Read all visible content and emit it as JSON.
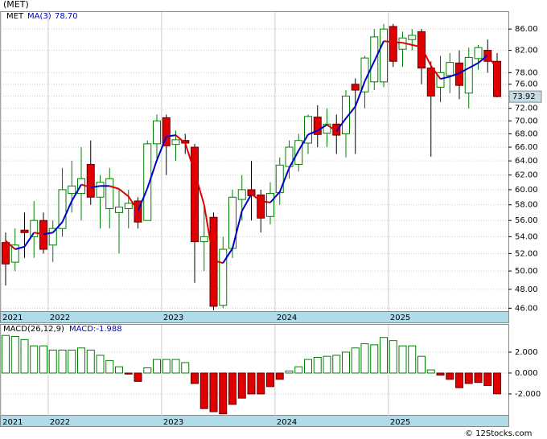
{
  "footer": "© 12Stocks.com",
  "chart_data": [
    {
      "type": "candlestick",
      "title": "(MET)",
      "name": "MET",
      "categories": [
        "2021",
        null,
        null,
        null,
        null,
        "2022",
        null,
        null,
        null,
        null,
        null,
        null,
        null,
        null,
        null,
        null,
        null,
        "2023",
        null,
        null,
        null,
        null,
        null,
        null,
        null,
        null,
        null,
        null,
        null,
        "2024",
        null,
        null,
        null,
        null,
        null,
        null,
        null,
        null,
        null,
        null,
        null,
        "2025",
        null,
        null,
        null,
        null,
        null,
        null,
        null,
        null,
        null,
        null,
        null
      ],
      "open": [
        53.3,
        51,
        54.8,
        54,
        56,
        53,
        55,
        59.5,
        59.5,
        63.5,
        59,
        57.5,
        57,
        57.5,
        58.5,
        56,
        66.5,
        70.5,
        66.4,
        67,
        66,
        53.4,
        56.4,
        46.3,
        52.6,
        58.7,
        60,
        59.3,
        56.5,
        59.6,
        63.2,
        63.5,
        66.6,
        70.6,
        68.1,
        69.5,
        68,
        76,
        74.7,
        76.4,
        76.4,
        86.5,
        82.2,
        84,
        85.5,
        78.8,
        75.5,
        77.5,
        79.7,
        74.5,
        80.5,
        82,
        80
      ],
      "high": [
        54.5,
        55,
        57,
        58.5,
        57,
        56,
        63,
        64,
        66,
        67,
        62,
        63,
        60,
        60,
        59,
        67,
        71,
        71,
        68.5,
        68,
        66.5,
        58,
        57,
        54,
        60,
        62,
        64,
        60,
        61,
        64.5,
        67,
        68,
        71,
        72.5,
        72,
        71,
        75,
        77,
        81,
        86,
        87,
        87,
        85.5,
        86,
        86,
        80,
        81,
        81.5,
        82,
        82.5,
        83,
        84,
        81.5
      ],
      "low": [
        48.4,
        50,
        51.5,
        51.5,
        52,
        51,
        54,
        57,
        56,
        58,
        55,
        55,
        52,
        55,
        55,
        56,
        64,
        62,
        64,
        65,
        48.7,
        50,
        45.8,
        46,
        51.5,
        56,
        56,
        54.5,
        55.5,
        58,
        61.5,
        62.5,
        65,
        66,
        66,
        65,
        64.5,
        65,
        72,
        75,
        75.5,
        79,
        79,
        82,
        76,
        64.6,
        73,
        74.5,
        73.5,
        72,
        78.5,
        78,
        73.8
      ],
      "close": [
        50.8,
        53,
        54.5,
        56,
        52.5,
        55,
        60,
        60.5,
        61.5,
        59,
        61,
        61.5,
        57.7,
        58.2,
        55.8,
        66.5,
        70,
        66.2,
        67.1,
        66.6,
        53.4,
        54,
        46.2,
        52.5,
        59,
        60,
        59.2,
        56.3,
        59.5,
        63.4,
        66,
        67,
        70.7,
        67.9,
        69.5,
        67.8,
        74,
        75,
        80.6,
        84.5,
        86,
        80,
        84.3,
        84.8,
        78.8,
        74,
        78,
        79.8,
        75.8,
        80.7,
        82.5,
        80,
        73.92
      ],
      "up_color": "#008000",
      "down_color": "#e00000",
      "ma": {
        "name": "MA(3)",
        "color": "#0000cc",
        "down_color": "#e00000",
        "value_label": "78.70",
        "values": [
          53.5,
          52.5,
          52.8,
          54.5,
          54.3,
          54.5,
          55.8,
          58.5,
          60.7,
          60.3,
          60.5,
          60.5,
          60.1,
          59.1,
          57.2,
          60.2,
          64.1,
          67.6,
          67.8,
          66.6,
          62.4,
          58.0,
          51.2,
          50.9,
          52.6,
          57.2,
          59.4,
          58.5,
          58.3,
          59.7,
          63.0,
          65.5,
          67.9,
          68.5,
          69.4,
          68.4,
          70.4,
          72.3,
          76.5,
          80.0,
          83.7,
          83.5,
          83.4,
          83.0,
          82.6,
          79.2,
          76.9,
          77.3,
          77.9,
          78.8,
          79.7,
          81.1,
          78.7
        ]
      },
      "log_scale": true,
      "grid": true,
      "ylim": [
        45.7,
        89.5
      ],
      "yticks": [
        {
          "value": 46,
          "label": "46.00"
        },
        {
          "value": 48,
          "label": "48.00"
        },
        {
          "value": 50,
          "label": "50.00"
        },
        {
          "value": 52,
          "label": "52.00"
        },
        {
          "value": 54,
          "label": "54.00"
        },
        {
          "value": 56,
          "label": "56.00"
        },
        {
          "value": 58,
          "label": "58.00"
        },
        {
          "value": 60,
          "label": "60.00"
        },
        {
          "value": 62,
          "label": "62.00"
        },
        {
          "value": 64,
          "label": "64.00"
        },
        {
          "value": 66,
          "label": "66.00"
        },
        {
          "value": 68,
          "label": "68.00"
        },
        {
          "value": 70,
          "label": "70.00"
        },
        {
          "value": 72,
          "label": "72.00"
        },
        {
          "value": 74,
          "label": "74.00"
        },
        {
          "value": 76,
          "label": "76.00"
        },
        {
          "value": 78,
          "label": "78.00"
        },
        {
          "value": 82,
          "label": "82.00"
        },
        {
          "value": 86,
          "label": "86.00"
        }
      ]
    },
    {
      "type": "bar",
      "title": "MACD(26,12,9)",
      "value_label": "MACD:-1.988",
      "categories": [
        "2021",
        null,
        null,
        null,
        null,
        "2022",
        null,
        null,
        null,
        null,
        null,
        null,
        null,
        null,
        null,
        null,
        null,
        "2023",
        null,
        null,
        null,
        null,
        null,
        null,
        null,
        null,
        null,
        null,
        null,
        "2024",
        null,
        null,
        null,
        null,
        null,
        null,
        null,
        null,
        null,
        null,
        null,
        "2025",
        null,
        null,
        null,
        null,
        null,
        null,
        null,
        null,
        null,
        null,
        null
      ],
      "values": [
        3.6,
        3.5,
        3.2,
        2.6,
        2.6,
        2.2,
        2.2,
        2.2,
        2.4,
        2.2,
        1.7,
        1.2,
        0.6,
        -0.1,
        -0.8,
        0.5,
        1.3,
        1.3,
        1.3,
        1.0,
        -1.0,
        -3.4,
        -3.7,
        -3.9,
        -3.0,
        -2.4,
        -2.0,
        -2.0,
        -1.3,
        -0.6,
        0.2,
        0.6,
        1.3,
        1.5,
        1.6,
        1.7,
        2.0,
        2.4,
        2.8,
        2.7,
        3.4,
        3.1,
        2.6,
        2.6,
        1.6,
        0.3,
        -0.2,
        -0.6,
        -1.4,
        -1.0,
        -0.9,
        -1.2,
        -1.988
      ],
      "up_color": "#008000",
      "down_color": "#e00000",
      "grid": true,
      "ylim": [
        -4.08,
        4.69
      ],
      "yticks": [
        {
          "value": -2,
          "label": "-2.000"
        },
        {
          "value": 0,
          "label": "0.000"
        },
        {
          "value": 2,
          "label": "2.000"
        }
      ]
    }
  ]
}
